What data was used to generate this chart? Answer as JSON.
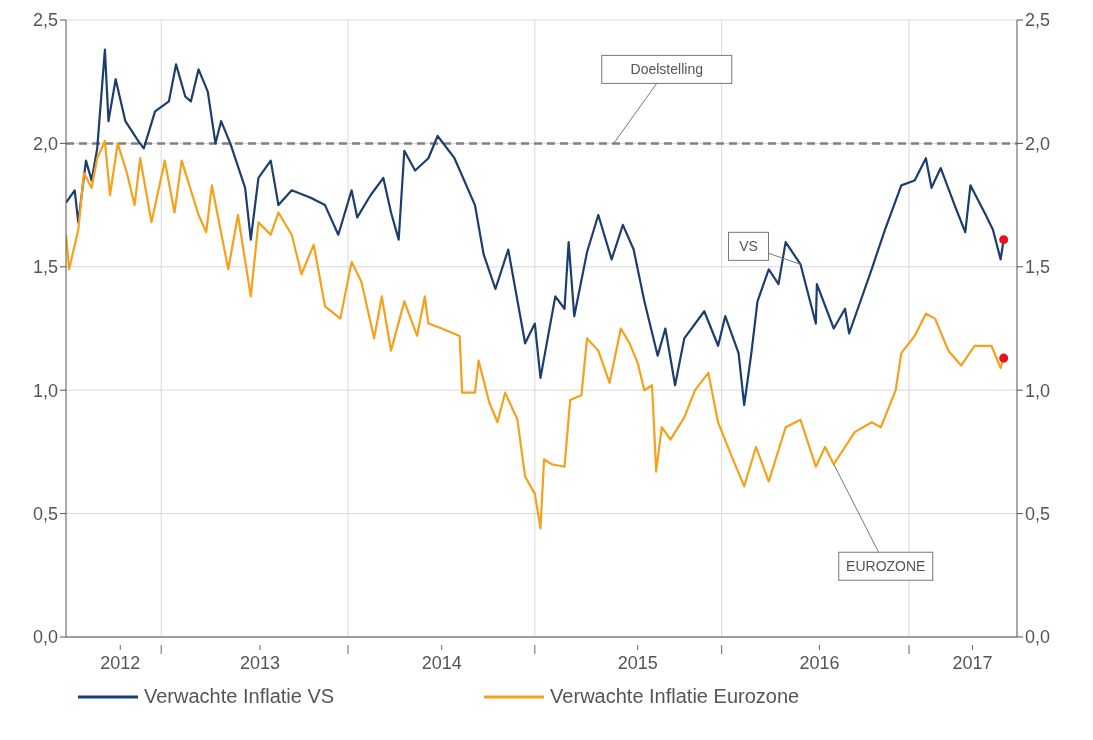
{
  "chart_data": {
    "type": "line",
    "xlim": [
      "2012-06-29",
      "2017-07-31"
    ],
    "xticks": [
      {
        "value": "2012-10-13",
        "label": "2012"
      },
      {
        "value": "2013-01-01",
        "label": null
      },
      {
        "value": "2013-07-13",
        "label": "2013"
      },
      {
        "value": "2014-01-01",
        "label": null
      },
      {
        "value": "2014-07-03",
        "label": "2014"
      },
      {
        "value": "2015-01-01",
        "label": null
      },
      {
        "value": "2015-07-21",
        "label": "2015"
      },
      {
        "value": "2016-01-01",
        "label": null
      },
      {
        "value": "2016-07-10",
        "label": "2016"
      },
      {
        "value": "2017-01-01",
        "label": null
      },
      {
        "value": "2017-05-05",
        "label": "2017"
      }
    ],
    "ylim": [
      0,
      2.5
    ],
    "yticks": [
      {
        "value": 0,
        "label": "0,0"
      },
      {
        "value": 0.5,
        "label": "0,5"
      },
      {
        "value": 1,
        "label": "1,0"
      },
      {
        "value": 1.5,
        "label": "1,5"
      },
      {
        "value": 2,
        "label": "2,0"
      },
      {
        "value": 2.5,
        "label": "2,5"
      }
    ],
    "y2lim": [
      0,
      2.5
    ],
    "y2ticks": [
      {
        "value": 0,
        "label": "0,0"
      },
      {
        "value": 0.5,
        "label": "0,5"
      },
      {
        "value": 1,
        "label": "1,0"
      },
      {
        "value": 1.5,
        "label": "1,5"
      },
      {
        "value": 2,
        "label": "2,0"
      },
      {
        "value": 2.5,
        "label": "2,5"
      }
    ],
    "grid": true,
    "legend": "bottom",
    "line_style": "solid",
    "marker": "none",
    "series": [
      {
        "name": "Verwachte Inflatie VS",
        "color": "#1b3e6f",
        "x": [
          "2012-06-29",
          "2012-07-16",
          "2012-07-23",
          "2012-08-07",
          "2012-08-18",
          "2012-08-29",
          "2012-09-13",
          "2012-09-20",
          "2012-10-04",
          "2012-10-23",
          "2012-11-17",
          "2012-11-28",
          "2012-12-20",
          "2013-01-16",
          "2013-01-30",
          "2013-02-17",
          "2013-02-28",
          "2013-03-15",
          "2013-04-02",
          "2013-04-17",
          "2013-04-28",
          "2013-05-16",
          "2013-06-14",
          "2013-06-25",
          "2013-07-10",
          "2013-08-03",
          "2013-08-18",
          "2013-09-13",
          "2013-10-20",
          "2013-11-17",
          "2013-12-13",
          "2014-01-08",
          "2014-01-19",
          "2014-02-14",
          "2014-03-11",
          "2014-03-26",
          "2014-04-10",
          "2014-04-21",
          "2014-05-12",
          "2014-06-07",
          "2014-06-25",
          "2014-07-28",
          "2014-09-06",
          "2014-09-23",
          "2014-10-16",
          "2014-11-10",
          "2014-12-13",
          "2015-01-01",
          "2015-01-12",
          "2015-02-10",
          "2015-02-28",
          "2015-03-08",
          "2015-03-19",
          "2015-04-13",
          "2015-05-05",
          "2015-05-31",
          "2015-06-22",
          "2015-07-13",
          "2015-08-03",
          "2015-08-29",
          "2015-09-13",
          "2015-10-02",
          "2015-10-20",
          "2015-11-28",
          "2015-12-25",
          "2016-01-08",
          "2016-02-03",
          "2016-02-14",
          "2016-02-28",
          "2016-03-11",
          "2016-04-02",
          "2016-04-21",
          "2016-05-05",
          "2016-06-03",
          "2016-07-03",
          "2016-07-05",
          "2016-08-07",
          "2016-08-29",
          "2016-09-06",
          "2016-09-23",
          "2016-10-20",
          "2016-11-15",
          "2016-12-17",
          "2017-01-12",
          "2017-02-03",
          "2017-02-14",
          "2017-03-04",
          "2017-04-02",
          "2017-04-21",
          "2017-05-01",
          "2017-05-31",
          "2017-06-14",
          "2017-06-29",
          "2017-07-05"
        ],
        "values": [
          1.76,
          1.81,
          1.68,
          1.93,
          1.85,
          1.98,
          2.38,
          2.09,
          2.26,
          2.09,
          2.01,
          1.98,
          2.13,
          2.17,
          2.32,
          2.19,
          2.17,
          2.3,
          2.21,
          2.0,
          2.09,
          2.0,
          1.82,
          1.61,
          1.86,
          1.93,
          1.75,
          1.81,
          1.78,
          1.75,
          1.63,
          1.81,
          1.7,
          1.79,
          1.86,
          1.72,
          1.61,
          1.97,
          1.89,
          1.94,
          2.03,
          1.94,
          1.75,
          1.55,
          1.41,
          1.57,
          1.19,
          1.27,
          1.05,
          1.38,
          1.33,
          1.6,
          1.3,
          1.56,
          1.71,
          1.53,
          1.67,
          1.57,
          1.36,
          1.14,
          1.25,
          1.02,
          1.21,
          1.32,
          1.18,
          1.3,
          1.15,
          0.94,
          1.15,
          1.36,
          1.49,
          1.43,
          1.6,
          1.51,
          1.27,
          1.43,
          1.25,
          1.33,
          1.23,
          1.33,
          1.49,
          1.65,
          1.83,
          1.85,
          1.94,
          1.82,
          1.9,
          1.74,
          1.64,
          1.83,
          1.71,
          1.65,
          1.53,
          1.61
        ]
      },
      {
        "name": "Verwachte Inflatie Eurozone",
        "color": "#f5a11c",
        "x": [
          "2012-06-29",
          "2012-07-05",
          "2012-07-23",
          "2012-08-03",
          "2012-08-18",
          "2012-08-29",
          "2012-09-13",
          "2012-09-23",
          "2012-10-08",
          "2012-10-26",
          "2012-11-10",
          "2012-11-21",
          "2012-12-13",
          "2013-01-08",
          "2013-01-27",
          "2013-02-10",
          "2013-03-15",
          "2013-03-30",
          "2013-04-10",
          "2013-05-12",
          "2013-05-31",
          "2013-06-25",
          "2013-07-10",
          "2013-08-03",
          "2013-08-18",
          "2013-09-13",
          "2013-10-02",
          "2013-10-26",
          "2013-11-17",
          "2013-12-17",
          "2014-01-08",
          "2014-01-27",
          "2014-02-21",
          "2014-03-08",
          "2014-03-26",
          "2014-04-21",
          "2014-05-16",
          "2014-05-31",
          "2014-06-07",
          "2014-07-03",
          "2014-08-07",
          "2014-08-12",
          "2014-09-06",
          "2014-09-13",
          "2014-10-04",
          "2014-10-20",
          "2014-11-04",
          "2014-11-28",
          "2014-12-13",
          "2015-01-01",
          "2015-01-12",
          "2015-01-19",
          "2015-02-03",
          "2015-02-28",
          "2015-03-11",
          "2015-04-02",
          "2015-04-13",
          "2015-05-05",
          "2015-05-27",
          "2015-06-18",
          "2015-07-05",
          "2015-07-21",
          "2015-08-03",
          "2015-08-18",
          "2015-08-26",
          "2015-09-06",
          "2015-09-23",
          "2015-10-20",
          "2015-11-10",
          "2015-12-06",
          "2015-12-25",
          "2016-01-19",
          "2016-02-14",
          "2016-03-08",
          "2016-04-02",
          "2016-05-05",
          "2016-06-03",
          "2016-07-03",
          "2016-07-21",
          "2016-08-07",
          "2016-09-17",
          "2016-10-20",
          "2016-11-07",
          "2016-12-06",
          "2016-12-17",
          "2017-01-12",
          "2017-02-03",
          "2017-02-21",
          "2017-03-19",
          "2017-04-13",
          "2017-05-09",
          "2017-06-11",
          "2017-06-29",
          "2017-07-05"
        ],
        "values": [
          1.63,
          1.49,
          1.65,
          1.88,
          1.82,
          1.94,
          2.01,
          1.79,
          2.0,
          1.88,
          1.75,
          1.94,
          1.68,
          1.93,
          1.72,
          1.93,
          1.71,
          1.64,
          1.83,
          1.49,
          1.71,
          1.38,
          1.68,
          1.63,
          1.72,
          1.63,
          1.47,
          1.59,
          1.34,
          1.29,
          1.52,
          1.44,
          1.21,
          1.38,
          1.16,
          1.36,
          1.22,
          1.38,
          1.27,
          1.25,
          1.22,
          0.99,
          0.99,
          1.12,
          0.95,
          0.87,
          0.99,
          0.88,
          0.65,
          0.58,
          0.44,
          0.72,
          0.7,
          0.69,
          0.96,
          0.98,
          1.21,
          1.16,
          1.03,
          1.25,
          1.19,
          1.11,
          1.0,
          1.02,
          0.67,
          0.85,
          0.8,
          0.89,
          1.0,
          1.07,
          0.87,
          0.74,
          0.61,
          0.77,
          0.63,
          0.85,
          0.88,
          0.69,
          0.77,
          0.7,
          0.83,
          0.87,
          0.85,
          1.0,
          1.15,
          1.22,
          1.31,
          1.29,
          1.16,
          1.1,
          1.18,
          1.18,
          1.09,
          1.13
        ]
      },
      {
        "type": "scatter",
        "color": "#e3141c",
        "marker": "circle",
        "x": [
          "2017-07-05",
          "2017-07-05"
        ],
        "values": [
          1.61,
          1.13
        ]
      }
    ],
    "ref_lines": [
      {
        "axis": "y",
        "value": 2,
        "label": "Doelstelling",
        "color": "#808080",
        "line_style": "dashed"
      }
    ],
    "annotations": [
      {
        "text": "VS",
        "x": "2016-06-03",
        "y": 1.51
      },
      {
        "text": "EUROZONE",
        "x": "2016-08-07",
        "y": 0.7
      }
    ]
  }
}
